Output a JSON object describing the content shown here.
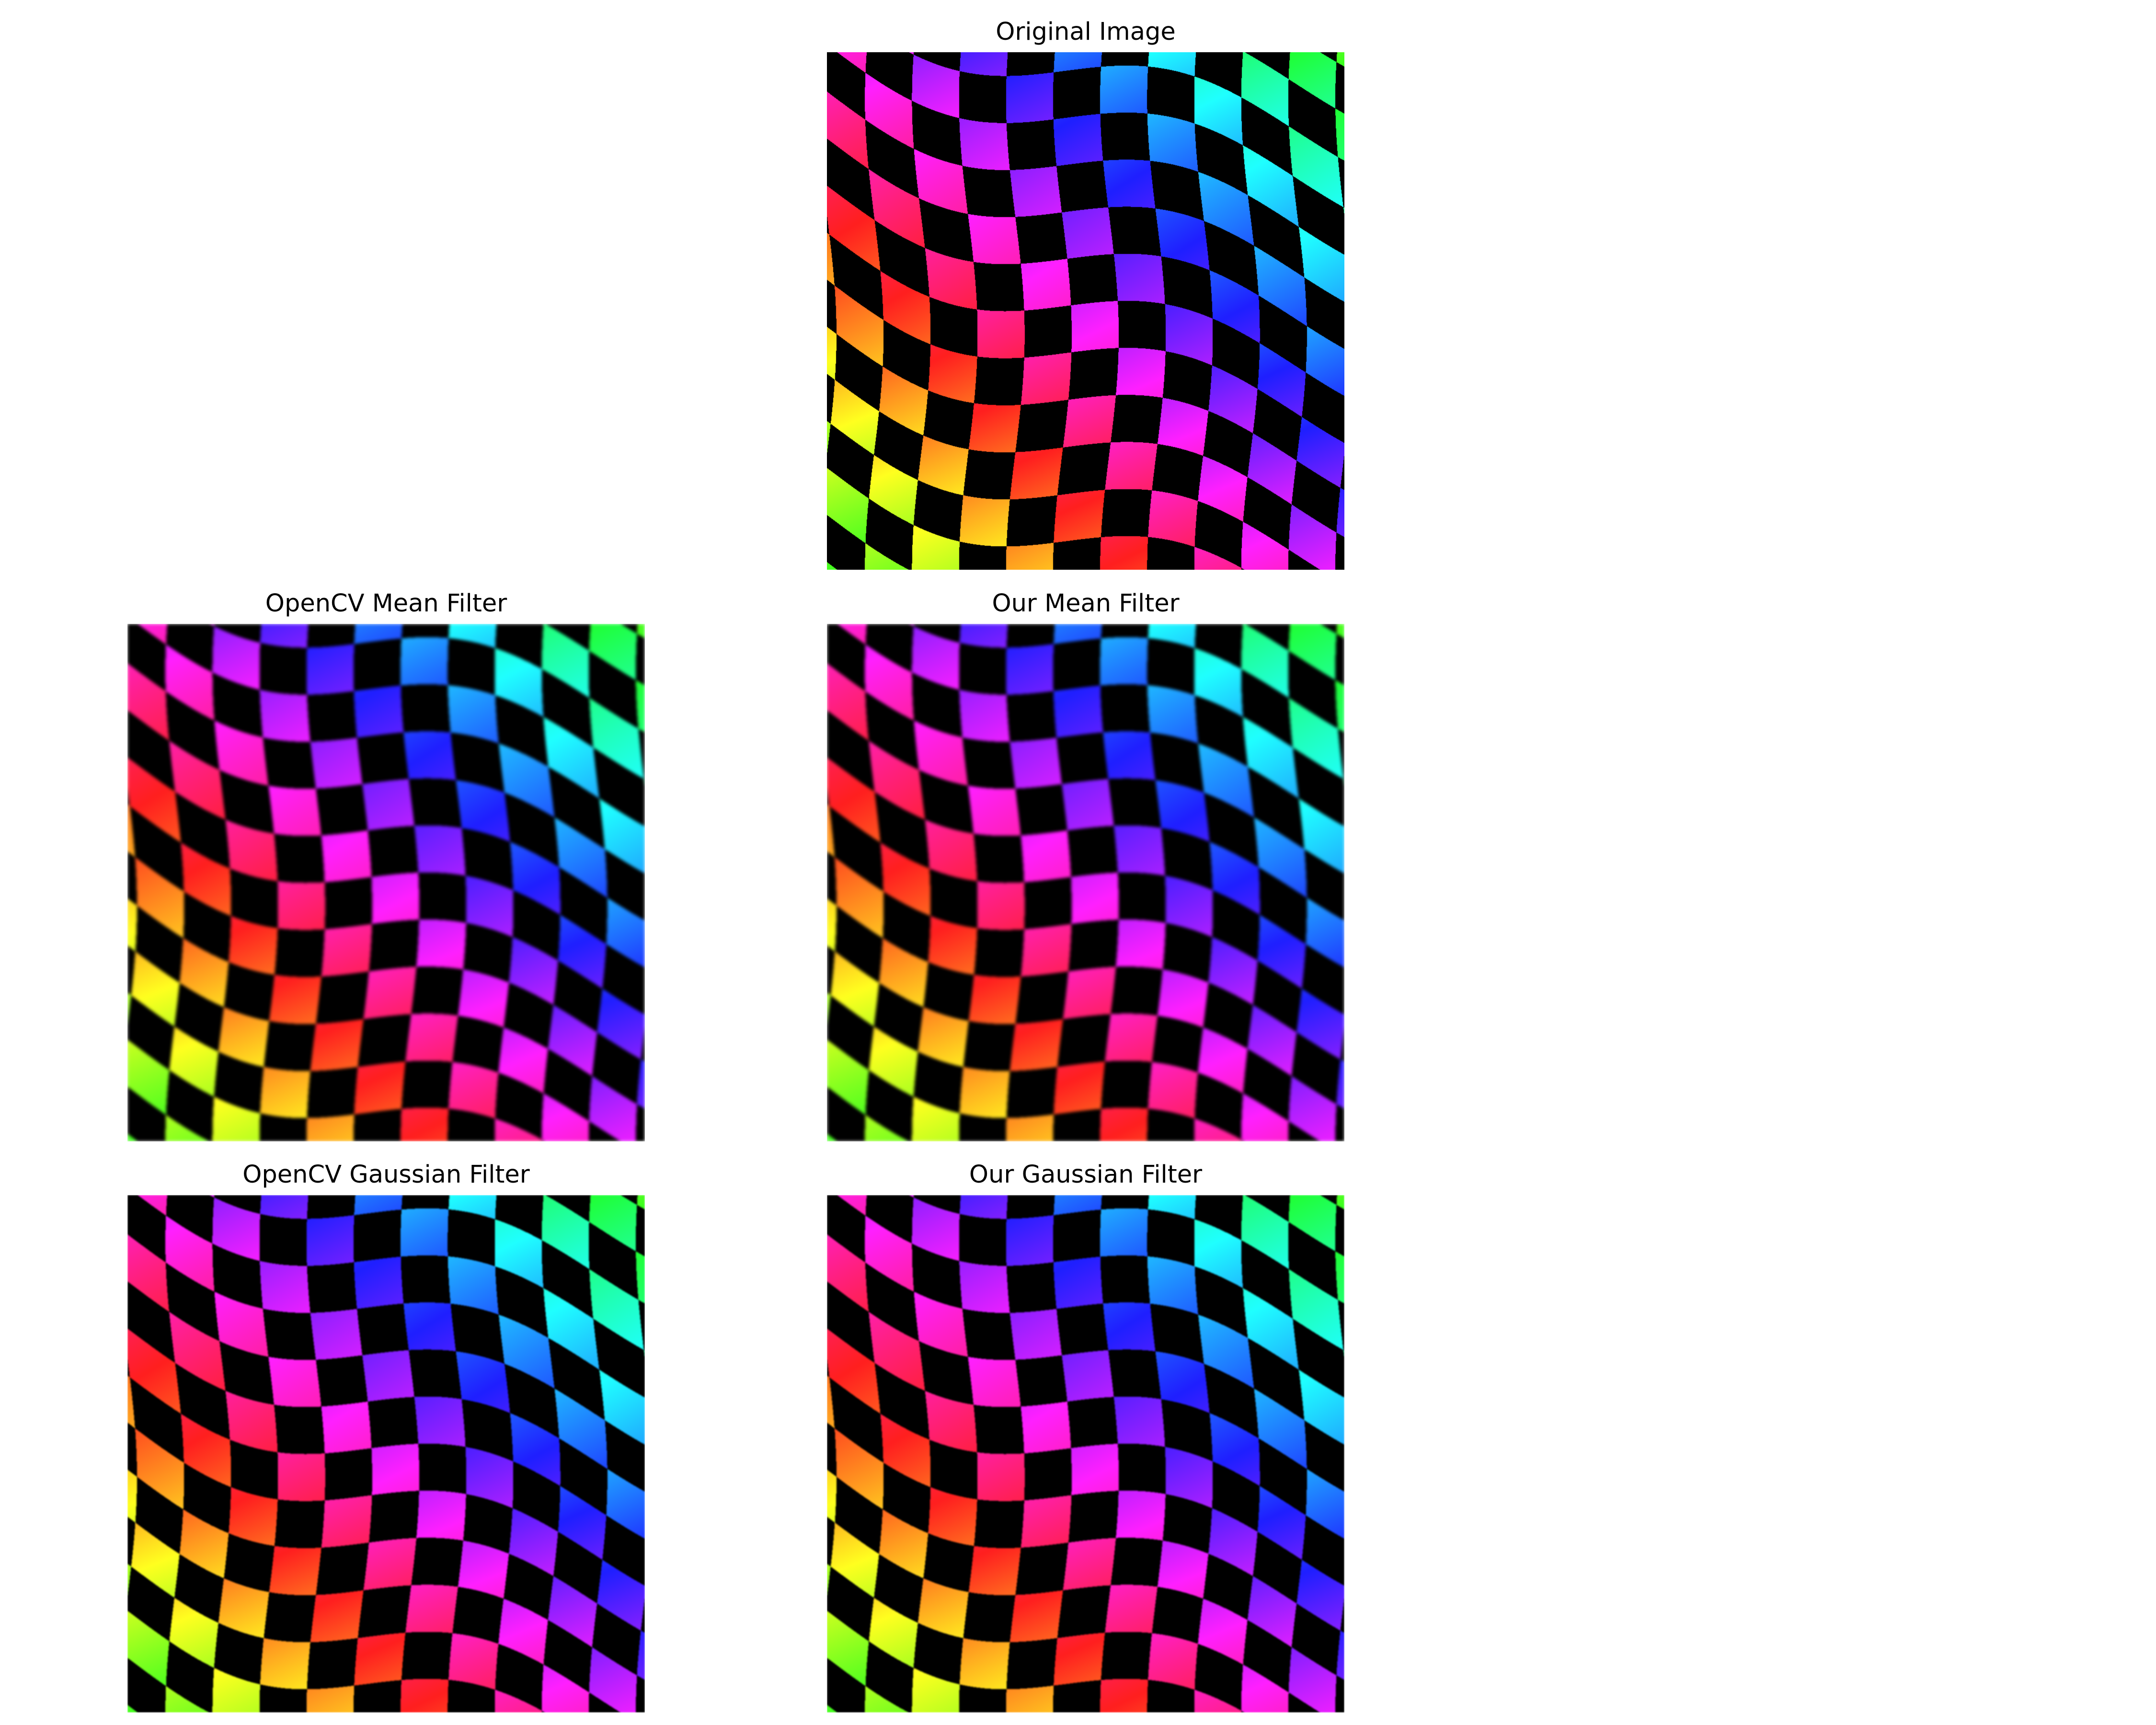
{
  "figure": {
    "panels": [
      {
        "id": "original",
        "title": "Original Image",
        "filter": "none"
      },
      {
        "id": "opencv-mean",
        "title": "OpenCV Mean Filter",
        "filter": "mean"
      },
      {
        "id": "our-mean",
        "title": "Our Mean Filter",
        "filter": "mean"
      },
      {
        "id": "opencv-gaussian",
        "title": "OpenCV Gaussian Filter",
        "filter": "gaussian"
      },
      {
        "id": "our-gaussian",
        "title": "Our Gaussian Filter",
        "filter": "gaussian"
      }
    ]
  },
  "pattern": {
    "description_free": true,
    "type": "wavy-checkerboard",
    "columns": 11,
    "rows": 11,
    "background": "#000000",
    "rainbow": [
      "#ff00ff",
      "#8000ff",
      "#0000ff",
      "#00c0ff",
      "#00ffff",
      "#80ff00",
      "#ffff00",
      "#ff8000",
      "#ff40a0"
    ]
  }
}
